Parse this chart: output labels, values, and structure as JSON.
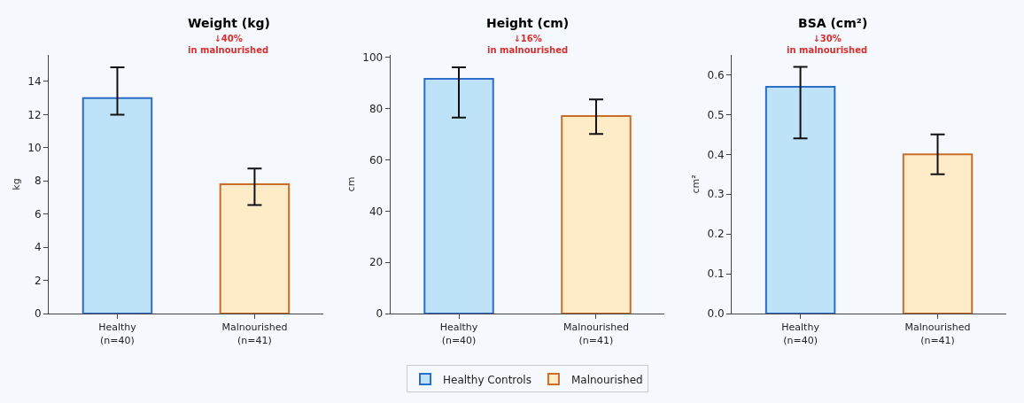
{
  "chart_data": [
    {
      "type": "bar",
      "title": "Weight (kg)",
      "ylabel": "kg",
      "annotations": [
        "↓40%\nin malnourished"
      ],
      "categories": [
        "Healthy\n(n=40)",
        "Malnourished\n(n=41)"
      ],
      "series": [
        {
          "name": "Healthy Controls",
          "color": "#bee3f8",
          "values": [
            13.0,
            null
          ],
          "errors": [
            [
              12.0,
              14.85
            ],
            null
          ]
        },
        {
          "name": "Malnourished",
          "color": "#feebc8",
          "values": [
            null,
            7.8
          ],
          "errors": [
            null,
            [
              6.55,
              8.75
            ]
          ]
        }
      ],
      "ylim": [
        0,
        15.6
      ],
      "yticks": [
        0,
        2,
        4,
        6,
        8,
        10,
        12,
        14
      ],
      "grid": false,
      "legend": "bottom"
    },
    {
      "type": "bar",
      "title": "Height (cm)",
      "ylabel": "cm",
      "annotations": [
        "↓16%\nin malnourished"
      ],
      "categories": [
        "Healthy\n(n=40)",
        "Malnourished\n(n=41)"
      ],
      "series": [
        {
          "color": "#bee3f8",
          "values": [
            91.7,
            null
          ],
          "errors": [
            [
              76.5,
              96.2
            ],
            null
          ]
        },
        {
          "color": "#feebc8",
          "values": [
            null,
            77.1
          ],
          "errors": [
            null,
            [
              70.1,
              83.6
            ]
          ]
        }
      ],
      "ylim": [
        0,
        101
      ],
      "yticks": [
        0,
        20,
        40,
        60,
        80,
        100
      ],
      "grid": false
    },
    {
      "type": "bar",
      "title": "BSA (cm²)",
      "ylabel": "cm²",
      "annotations": [
        "↓30%\nin malnourished"
      ],
      "categories": [
        "Healthy\n(n=40)",
        "Malnourished\n(n=41)"
      ],
      "series": [
        {
          "color": "#bee3f8",
          "values": [
            0.57,
            null
          ],
          "errors": [
            [
              0.44,
              0.62
            ],
            null
          ]
        },
        {
          "color": "#feebc8",
          "values": [
            null,
            0.4
          ],
          "errors": [
            null,
            [
              0.35,
              0.45
            ]
          ]
        }
      ],
      "ylim": [
        0,
        0.65
      ],
      "yticks": [
        {
          "value": 0,
          "label": "0.0"
        },
        0.1,
        0.2,
        0.3,
        0.4,
        0.5,
        0.6
      ],
      "grid": false
    }
  ]
}
